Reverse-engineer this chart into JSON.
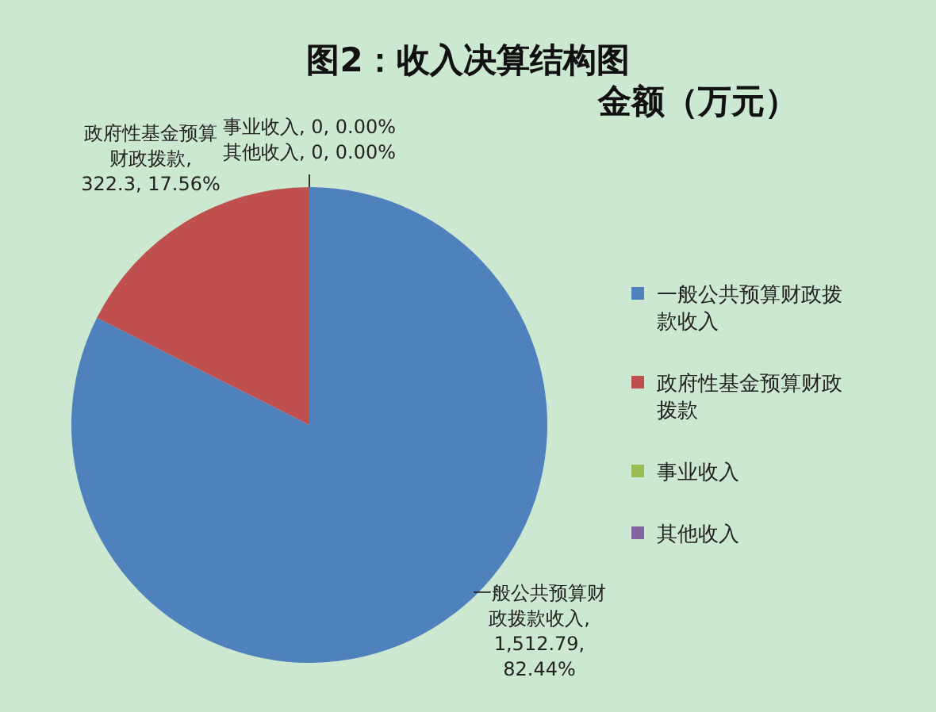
{
  "chart_data": {
    "type": "pie",
    "title": "图2：收入决算结构图",
    "subtitle": "金额（万元）",
    "categories": [
      "一般公共预算财政拨款收入",
      "政府性基金预算财政拨款",
      "事业收入",
      "其他收入"
    ],
    "values": [
      1512.79,
      322.3,
      0,
      0
    ],
    "value_labels": [
      "一般公共预算财政拨款收入, 1,512.79, 82.44%",
      "政府性基金预算财政拨款, 322.3, 17.56%",
      "事业收入, 0, 0.00%",
      "其他收入, 0, 0.00%"
    ],
    "colors": [
      "#4f81bd",
      "#c0504d",
      "#9bbb59",
      "#8064a2"
    ],
    "legend": "right"
  }
}
